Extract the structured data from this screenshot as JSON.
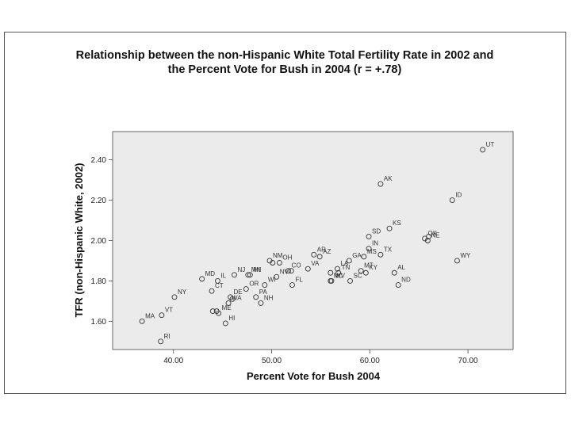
{
  "chart_data": {
    "type": "scatter",
    "title": [
      "Relationship between the non-Hispanic White Total Fertility Rate in 2002 and",
      "the Percent Vote for Bush in 2004  (r = +.78)"
    ],
    "xlabel": "Percent Vote for Bush 2004",
    "ylabel": "TFR (non-Hispanic White, 2002)",
    "xlim": [
      33.8,
      74.6
    ],
    "ylim": [
      1.46,
      2.54
    ],
    "xticks": [
      40,
      50,
      60,
      70
    ],
    "xtick_labels": [
      "40.00",
      "50.00",
      "60.00",
      "70.00"
    ],
    "yticks": [
      1.6,
      1.8,
      2.0,
      2.2,
      2.4
    ],
    "ytick_labels": [
      "1.60",
      "1.80",
      "2.00",
      "2.20",
      "2.40"
    ],
    "grid": false,
    "legend": "none",
    "plot_background": "#ebebeb",
    "marker": "open-circle",
    "points": [
      {
        "label": "UT",
        "x": 71.5,
        "y": 2.45
      },
      {
        "label": "AK",
        "x": 61.1,
        "y": 2.28
      },
      {
        "label": "ID",
        "x": 68.4,
        "y": 2.2
      },
      {
        "label": "KS",
        "x": 62.0,
        "y": 2.06
      },
      {
        "label": "OK",
        "x": 65.6,
        "y": 2.01
      },
      {
        "label": "",
        "x": 66.0,
        "y": 2.02
      },
      {
        "label": "SD",
        "x": 59.9,
        "y": 2.02
      },
      {
        "label": "NE",
        "x": 65.9,
        "y": 2.0
      },
      {
        "label": "IN",
        "x": 59.9,
        "y": 1.96
      },
      {
        "label": "TX",
        "x": 61.1,
        "y": 1.93
      },
      {
        "label": "WY",
        "x": 68.9,
        "y": 1.9
      },
      {
        "label": "AR",
        "x": 54.3,
        "y": 1.93
      },
      {
        "label": "MS",
        "x": 59.4,
        "y": 1.92
      },
      {
        "label": "GA",
        "x": 57.9,
        "y": 1.9
      },
      {
        "label": "AZ",
        "x": 54.9,
        "y": 1.92
      },
      {
        "label": "NM",
        "x": 49.8,
        "y": 1.9
      },
      {
        "label": "OH",
        "x": 50.8,
        "y": 1.89
      },
      {
        "label": "",
        "x": 50.1,
        "y": 1.89
      },
      {
        "label": "NJ",
        "x": 46.2,
        "y": 1.83
      },
      {
        "label": "MN",
        "x": 47.6,
        "y": 1.83
      },
      {
        "label": "MD",
        "x": 42.9,
        "y": 1.81
      },
      {
        "label": "MI",
        "x": 47.8,
        "y": 1.83
      },
      {
        "label": "VA",
        "x": 53.7,
        "y": 1.86
      },
      {
        "label": "LA",
        "x": 56.7,
        "y": 1.86
      },
      {
        "label": "TN",
        "x": 56.8,
        "y": 1.84
      },
      {
        "label": "",
        "x": 56.0,
        "y": 1.84
      },
      {
        "label": "",
        "x": 52.0,
        "y": 1.85
      },
      {
        "label": "CO",
        "x": 51.7,
        "y": 1.85
      },
      {
        "label": "NV",
        "x": 50.5,
        "y": 1.82
      },
      {
        "label": "NC",
        "x": 56.0,
        "y": 1.8
      },
      {
        "label": "MT",
        "x": 59.1,
        "y": 1.85
      },
      {
        "label": "KY",
        "x": 59.6,
        "y": 1.84
      },
      {
        "label": "AL",
        "x": 62.5,
        "y": 1.84
      },
      {
        "label": "ND",
        "x": 62.9,
        "y": 1.78
      },
      {
        "label": "SC",
        "x": 58.0,
        "y": 1.8
      },
      {
        "label": "WV",
        "x": 56.1,
        "y": 1.8
      },
      {
        "label": "FL",
        "x": 52.1,
        "y": 1.78
      },
      {
        "label": "OR",
        "x": 47.4,
        "y": 1.76
      },
      {
        "label": "IL",
        "x": 44.5,
        "y": 1.8
      },
      {
        "label": "WI",
        "x": 49.3,
        "y": 1.78
      },
      {
        "label": "NY",
        "x": 40.1,
        "y": 1.72
      },
      {
        "label": "CT",
        "x": 43.9,
        "y": 1.75
      },
      {
        "label": "DE",
        "x": 45.8,
        "y": 1.72
      },
      {
        "label": "",
        "x": 46.0,
        "y": 1.71
      },
      {
        "label": "PA",
        "x": 48.4,
        "y": 1.72
      },
      {
        "label": "WA",
        "x": 45.6,
        "y": 1.69
      },
      {
        "label": "NH",
        "x": 48.9,
        "y": 1.69
      },
      {
        "label": "",
        "x": 44.4,
        "y": 1.65
      },
      {
        "label": "",
        "x": 44.0,
        "y": 1.65
      },
      {
        "label": "VT",
        "x": 38.8,
        "y": 1.63
      },
      {
        "label": "MA",
        "x": 36.8,
        "y": 1.6
      },
      {
        "label": "ME",
        "x": 44.6,
        "y": 1.64
      },
      {
        "label": "HI",
        "x": 45.3,
        "y": 1.59
      },
      {
        "label": "RI",
        "x": 38.7,
        "y": 1.5
      }
    ]
  }
}
